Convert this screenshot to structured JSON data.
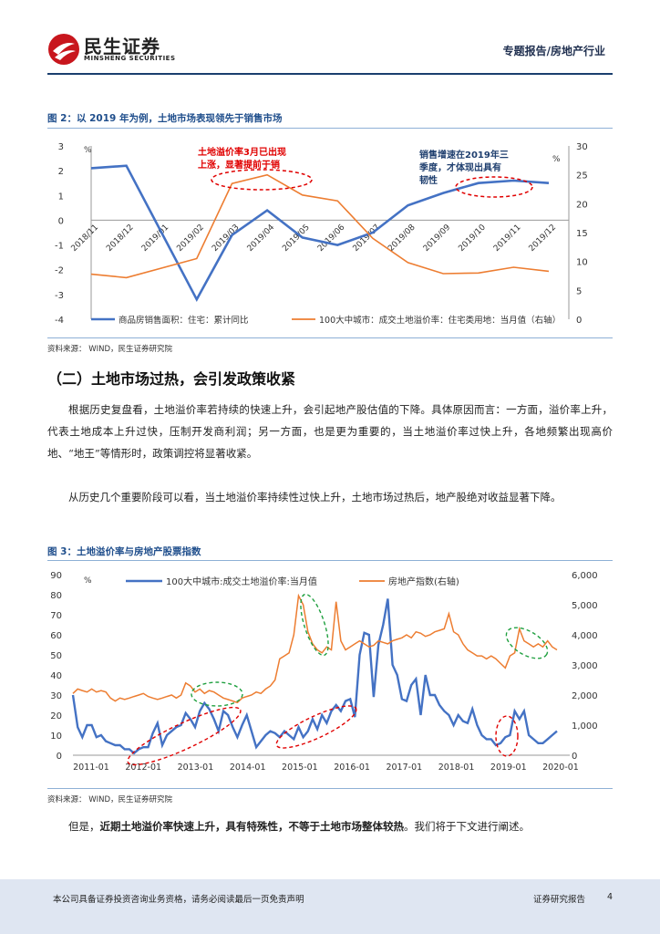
{
  "header": {
    "brand_cn": "民生证券",
    "brand_en": "MINSHENG SECURITIES",
    "report_type": "专题报告/房地产行业"
  },
  "figure2": {
    "caption": "图 2：以 2019 年为例，土地市场表现领先于销售市场",
    "source": "资料来源：   WIND，民生证券研究院",
    "chart_data": {
      "type": "line",
      "categories": [
        "2018/11",
        "2018/12",
        "2019/01",
        "2019/02",
        "2019/03",
        "2019/04",
        "2019/05",
        "2019/06",
        "2019/07",
        "2019/08",
        "2019/09",
        "2019/10",
        "2019/11",
        "2019/12"
      ],
      "y_left_ticks": [
        3,
        2,
        1,
        0,
        -1,
        -2,
        -3,
        -4
      ],
      "y_right_ticks": [
        30,
        25,
        20,
        15,
        10,
        5,
        0
      ],
      "ylim_left": [
        -4,
        3
      ],
      "ylim_right": [
        0,
        30
      ],
      "left_unit": "%",
      "right_unit": "%",
      "series": [
        {
          "name": "商品房销售面积：住宅：累计同比",
          "axis": "left",
          "color": "#4472c4",
          "values": [
            2.1,
            2.2,
            null,
            -3.2,
            -0.6,
            0.4,
            -0.7,
            -1.0,
            -0.5,
            0.6,
            1.1,
            1.5,
            1.6,
            1.5
          ]
        },
        {
          "name": "100大中城市：成交土地溢价率：住宅类用地：当月值（右轴）",
          "axis": "right",
          "color": "#ed7d31",
          "values": [
            7.8,
            7.2,
            null,
            10.5,
            23.5,
            25.0,
            21.5,
            20.5,
            14.0,
            9.8,
            7.9,
            8.0,
            9.0,
            8.3
          ]
        }
      ],
      "annotations": [
        {
          "text_line1": "土地溢价率3月已出现",
          "text_line2": "上涨，显著提前于销",
          "color": "#e00000"
        },
        {
          "text_line1": "销售增速在2019年三",
          "text_line2": "季度，才体现出具有",
          "text_line3": "韧性",
          "color": "#1f3f6f"
        }
      ]
    }
  },
  "section": {
    "title": "（二）土地市场过热，会引发政策收紧",
    "para1": "根据历史复盘看，土地溢价率若持续的快速上升，会引起地产股估值的下降。具体原因而言：一方面，溢价率上升，代表土地成本上升过快，压制开发商利润；另一方面，也是更为重要的，当土地溢价率过快上升，各地频繁出现高价地、“地王”等情形时，政策调控将显著收紧。",
    "para2": "从历史几个重要阶段可以看，当土地溢价率持续性过快上升，土地市场过热后，地产股绝对收益显著下降。"
  },
  "figure3": {
    "caption": "图 3：土地溢价率与房地产股票指数",
    "source": "资料来源：   WIND，民生证券研究院",
    "chart_data": {
      "type": "line",
      "x_ticks": [
        "2011-01",
        "2012-01",
        "2013-01",
        "2014-01",
        "2015-01",
        "2016-01",
        "2017-01",
        "2018-01",
        "2019-01",
        "2020-01"
      ],
      "y_left_ticks": [
        90,
        80,
        70,
        60,
        50,
        40,
        30,
        20,
        10,
        0
      ],
      "y_right_ticks": [
        "6,000",
        "5,000",
        "4,000",
        "3,000",
        "2,000",
        "1,000",
        "0"
      ],
      "ylim_left": [
        0,
        90
      ],
      "ylim_right": [
        0,
        6000
      ],
      "left_unit": "%",
      "series": [
        {
          "name": "100大中城市:成交土地溢价率:当月值",
          "axis": "left",
          "color": "#4472c4",
          "values": [
            30,
            14,
            9,
            15,
            15,
            9,
            10,
            7,
            6,
            5,
            5,
            3,
            3,
            1,
            3,
            4,
            4,
            11,
            16,
            5,
            10,
            12,
            14,
            15,
            21,
            18,
            14,
            22,
            26,
            23,
            18,
            12,
            22,
            20,
            14,
            9,
            15,
            20,
            12,
            4,
            7,
            10,
            12,
            11,
            9,
            12,
            10,
            8,
            14,
            9,
            12,
            18,
            13,
            20,
            16,
            22,
            25,
            22,
            27,
            28,
            19,
            50,
            61,
            60,
            29,
            55,
            65,
            78,
            45,
            40,
            28,
            27,
            35,
            38,
            20,
            40,
            30,
            30,
            25,
            22,
            20,
            15,
            20,
            17,
            16,
            23,
            15,
            10,
            8,
            8,
            5,
            6,
            9,
            10,
            22,
            18,
            22,
            10,
            8,
            6,
            6,
            8,
            10,
            12
          ]
        },
        {
          "name": "房地产指数(右轴)",
          "axis": "right",
          "color": "#ed7d31",
          "values": [
            2050,
            2200,
            2150,
            2100,
            2200,
            2100,
            2150,
            2100,
            1900,
            1800,
            1900,
            1850,
            1900,
            1950,
            2000,
            2050,
            1950,
            1900,
            1850,
            1900,
            1950,
            2000,
            1900,
            2000,
            2400,
            2300,
            2100,
            2200,
            2050,
            2150,
            2100,
            2000,
            1900,
            1850,
            1800,
            1750,
            1900,
            1950,
            2000,
            2100,
            2050,
            2200,
            2300,
            2500,
            3200,
            3300,
            3400,
            4000,
            5300,
            5000,
            4100,
            3700,
            3500,
            3400,
            3600,
            3500,
            5100,
            3800,
            3500,
            3600,
            3700,
            3800,
            3700,
            3600,
            3650,
            3800,
            3750,
            3700,
            3800,
            3850,
            3900,
            4000,
            3900,
            4100,
            4050,
            3950,
            4000,
            4100,
            4150,
            4200,
            4700,
            4100,
            4000,
            3700,
            3500,
            3400,
            3300,
            3300,
            3200,
            3300,
            3200,
            3050,
            2900,
            3300,
            3400,
            4200,
            3800,
            3700,
            3600,
            3700,
            3600,
            3800,
            3600,
            3500
          ]
        }
      ]
    }
  },
  "conclusion": {
    "lead": "但是，",
    "bold": "近期土地溢价率快速上升，具有特殊性，不等于土地市场整体较热",
    "tail": "。我们将于下文进行阐述。"
  },
  "footer": {
    "disclaimer": "本公司具备证券投资咨询业务资格，请务必阅读最后一页免责声明",
    "label": "证券研究报告",
    "page": "4"
  }
}
